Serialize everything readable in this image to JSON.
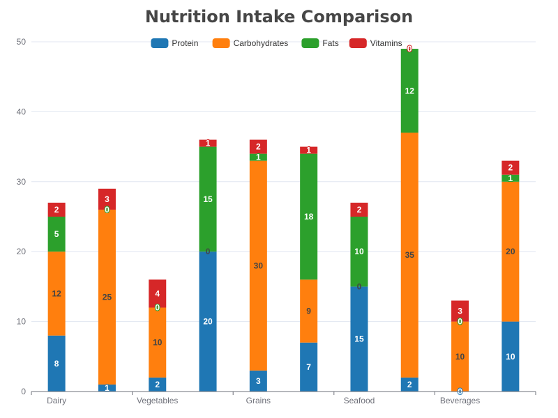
{
  "chart_data": {
    "type": "bar",
    "stacked": true,
    "title": "Nutrition Intake Comparison",
    "xlabel": "",
    "ylabel": "",
    "ylim": [
      0,
      50
    ],
    "yticks": [
      0,
      10,
      20,
      30,
      40,
      50
    ],
    "grid": true,
    "legend_position": "top-center",
    "categories": [
      "Dairy",
      "",
      "Vegetables",
      "",
      "Grains",
      "",
      "Seafood",
      "",
      "Beverages",
      ""
    ],
    "series": [
      {
        "name": "Protein",
        "color": "#1f77b4",
        "values": [
          8,
          1,
          2,
          20,
          3,
          7,
          15,
          2,
          0,
          10
        ]
      },
      {
        "name": "Carbohydrates",
        "color": "#ff7f0e",
        "values": [
          12,
          25,
          10,
          0,
          30,
          9,
          0,
          35,
          10,
          20
        ]
      },
      {
        "name": "Fats",
        "color": "#2ca02c",
        "values": [
          5,
          0,
          0,
          15,
          1,
          18,
          10,
          12,
          0,
          1
        ]
      },
      {
        "name": "Vitamins",
        "color": "#d62728",
        "values": [
          2,
          3,
          4,
          1,
          2,
          1,
          2,
          0,
          3,
          2
        ]
      }
    ]
  }
}
